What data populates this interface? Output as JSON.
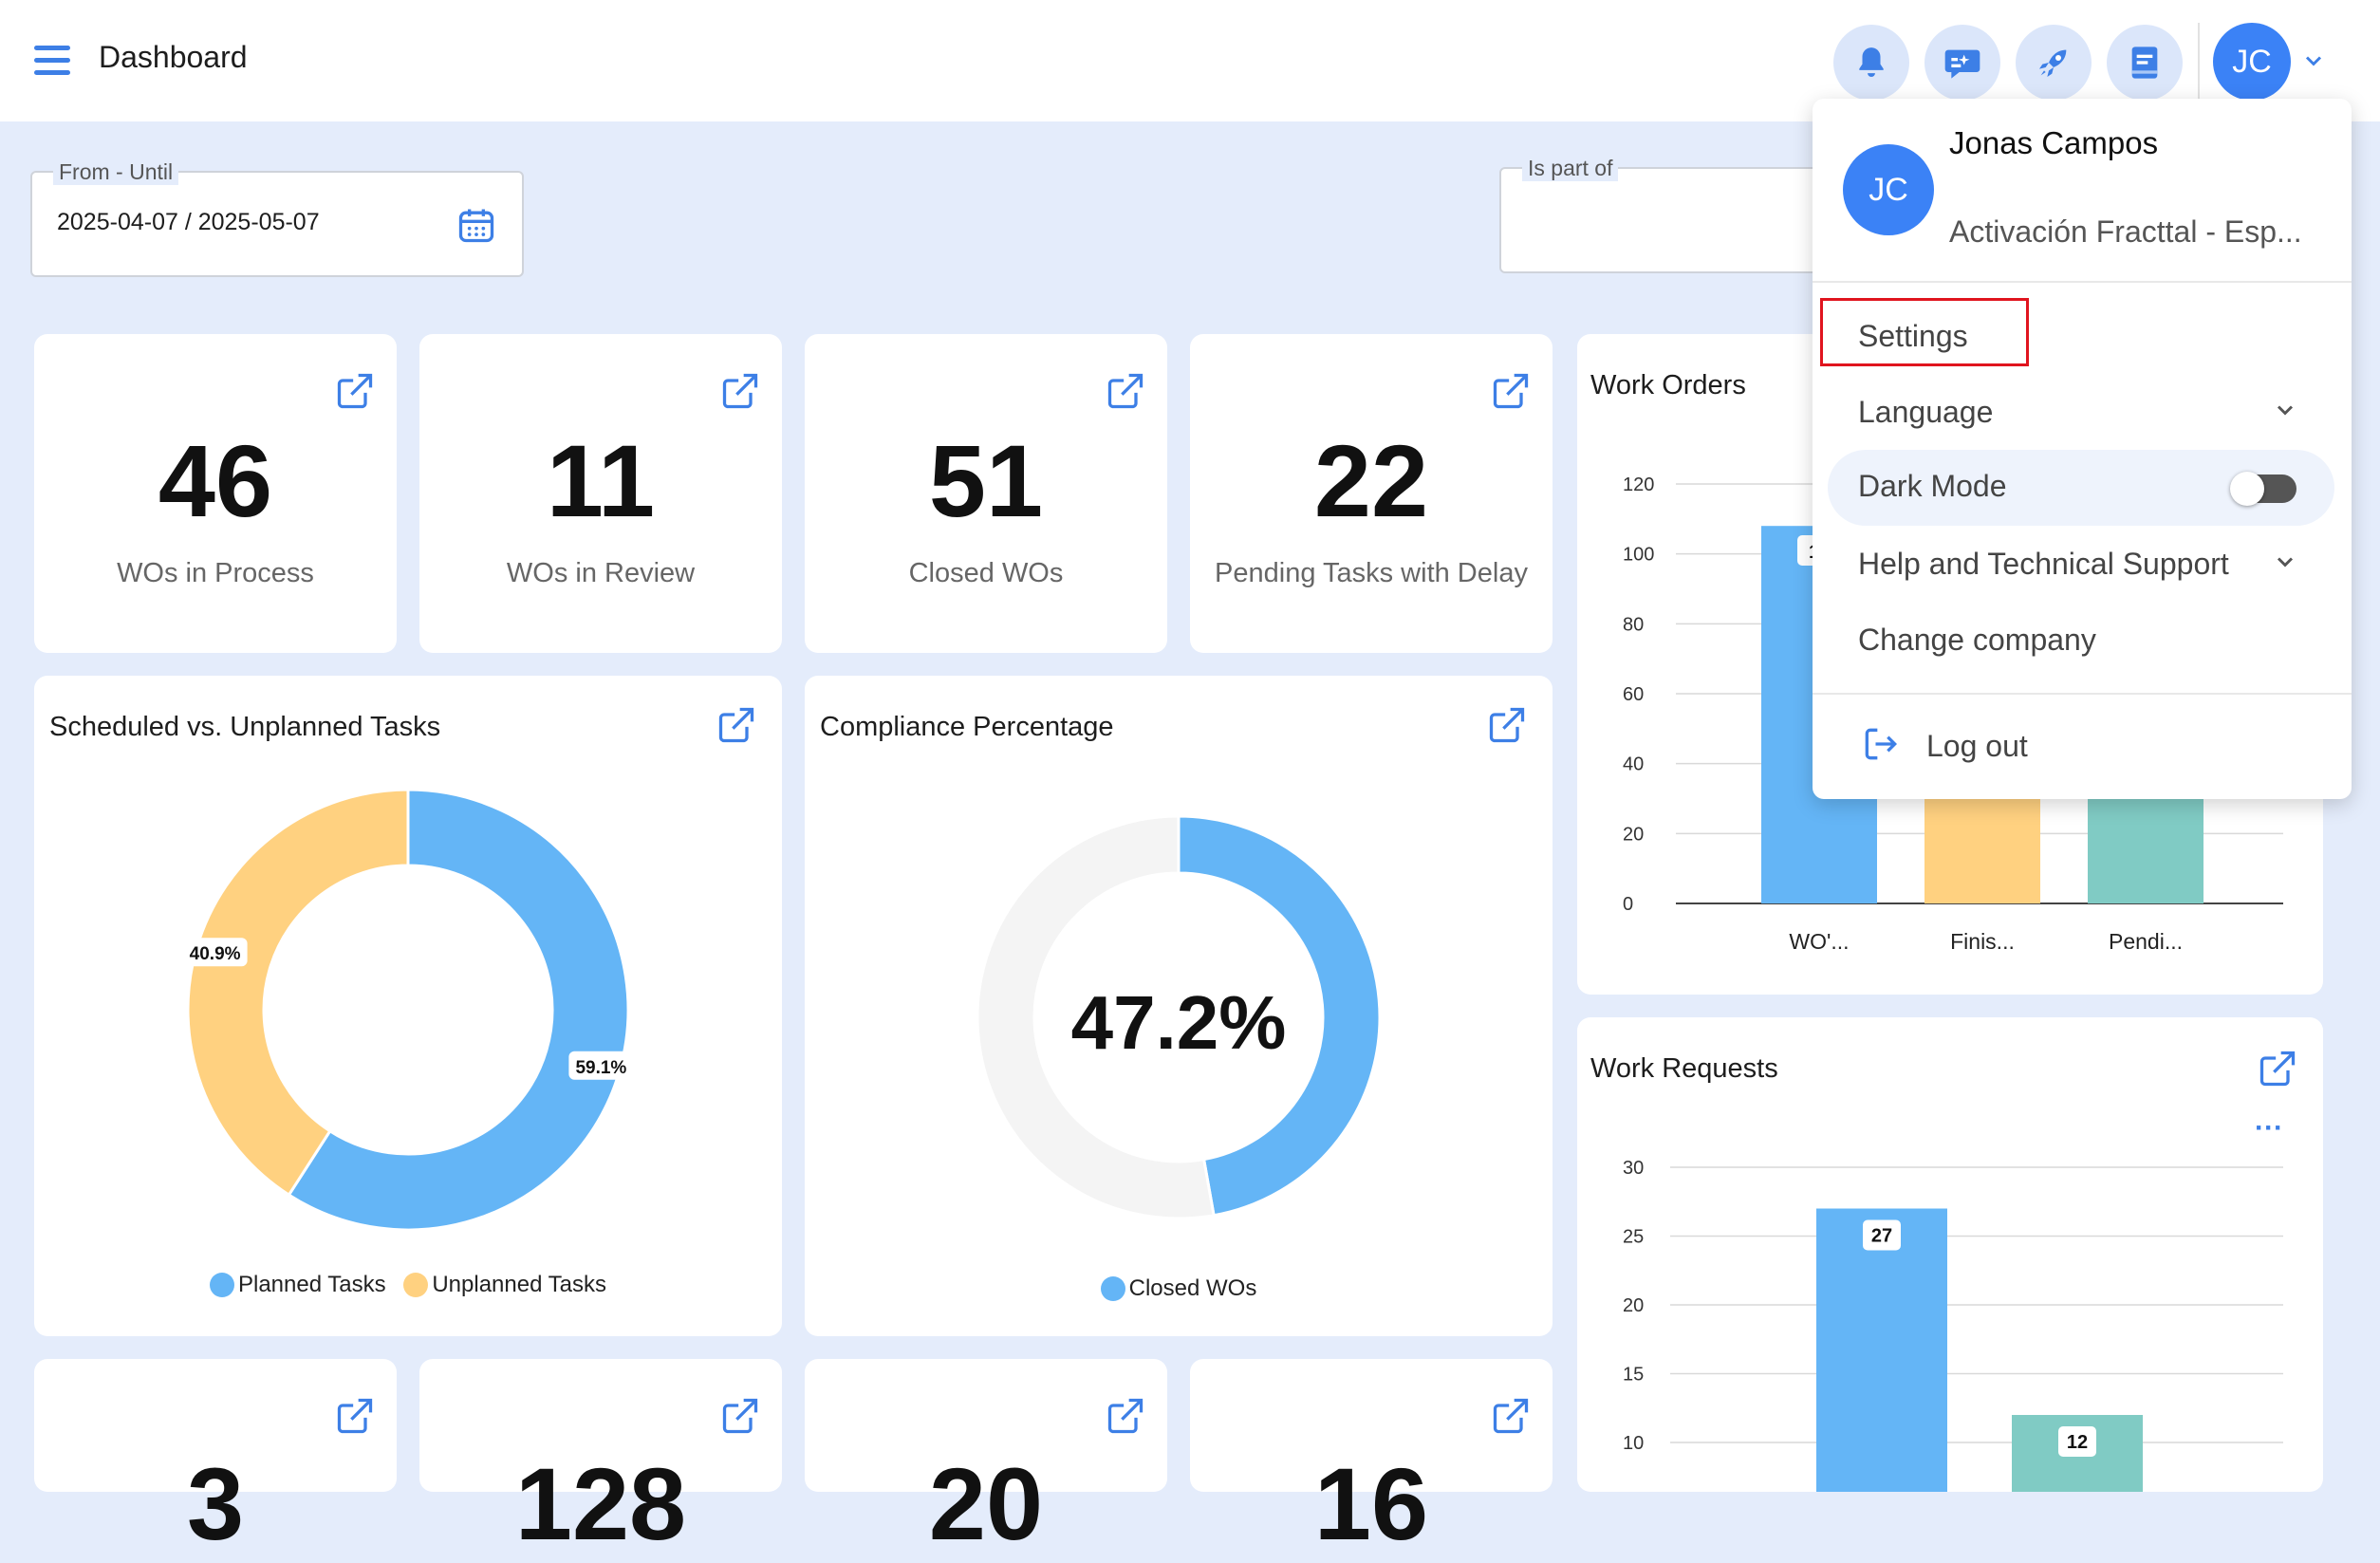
{
  "header": {
    "title": "Dashboard",
    "avatar_initials": "JC",
    "icons": [
      "bell-icon",
      "chat-ai-icon",
      "rocket-icon",
      "book-icon"
    ]
  },
  "filters": {
    "date_range_label": "From - Until",
    "date_range_value": "2025-04-07 / 2025-05-07",
    "is_part_of_label": "Is part of",
    "is_part_of_value": ""
  },
  "kpis": [
    {
      "value": "46",
      "label": "WOs in Process"
    },
    {
      "value": "11",
      "label": "WOs in Review"
    },
    {
      "value": "51",
      "label": "Closed WOs"
    },
    {
      "value": "22",
      "label": "Pending Tasks with Delay"
    }
  ],
  "bottom_kpis": [
    {
      "value": "3"
    },
    {
      "value": "128"
    },
    {
      "value": "20"
    },
    {
      "value": "16"
    }
  ],
  "scheduled_chart": {
    "title": "Scheduled vs. Unplanned Tasks",
    "legend": [
      "Planned Tasks",
      "Unplanned Tasks"
    ],
    "labels": [
      "59.1%",
      "40.9%"
    ]
  },
  "compliance_chart": {
    "title": "Compliance Percentage",
    "center_label": "47.2%",
    "legend": [
      "Closed WOs"
    ]
  },
  "work_orders_chart": {
    "title": "Work Orders",
    "tick_labels": [
      "0",
      "20",
      "40",
      "60",
      "80",
      "100",
      "120"
    ],
    "category_labels": [
      "WO'...",
      "Finis...",
      "Pendi..."
    ],
    "partial_label": "1"
  },
  "work_requests_chart": {
    "title": "Work Requests",
    "more": "···",
    "tick_labels": [
      "10",
      "15",
      "20",
      "25",
      "30"
    ],
    "bar_labels": [
      "27",
      "12"
    ]
  },
  "chart_data": [
    {
      "type": "pie",
      "title": "Scheduled vs. Unplanned Tasks",
      "categories": [
        "Planned Tasks",
        "Unplanned Tasks"
      ],
      "values": [
        59.1,
        40.9
      ],
      "colors": [
        "#64b5f6",
        "#ffd180"
      ],
      "legend": "bottom"
    },
    {
      "type": "pie",
      "title": "Compliance Percentage",
      "categories": [
        "Closed WOs",
        ""
      ],
      "values": [
        47.2,
        52.8
      ],
      "colors": [
        "#64b5f6",
        "#f4f4f4"
      ],
      "legend": "bottom"
    },
    {
      "type": "bar",
      "title": "Work Orders",
      "categories": [
        "WO'...",
        "Finis...",
        "Pendi..."
      ],
      "values": [
        108,
        null,
        null
      ],
      "colors": [
        "#64b5f6",
        "#ffd180",
        "#80cbc4"
      ],
      "ylim": [
        0,
        120
      ],
      "grid": true
    },
    {
      "type": "bar",
      "title": "Work Requests",
      "categories": [
        "",
        ""
      ],
      "values": [
        27,
        12
      ],
      "colors": [
        "#64b5f6",
        "#80cbc4"
      ],
      "ylim": [
        10,
        30
      ],
      "grid": true
    }
  ],
  "user_menu": {
    "avatar_initials": "JC",
    "name": "Jonas Campos",
    "company": "Activación Fracttal - Esp...",
    "items": {
      "settings": "Settings",
      "language": "Language",
      "dark_mode": "Dark Mode",
      "help": "Help and Technical Support",
      "change_company": "Change company",
      "logout": "Log out"
    },
    "dark_mode_enabled": false
  },
  "colors": {
    "accent": "#3b82f6",
    "planned": "#64b5f6",
    "unplanned": "#ffd180",
    "teal": "#80cbc4",
    "highlight": "#e0141e"
  }
}
